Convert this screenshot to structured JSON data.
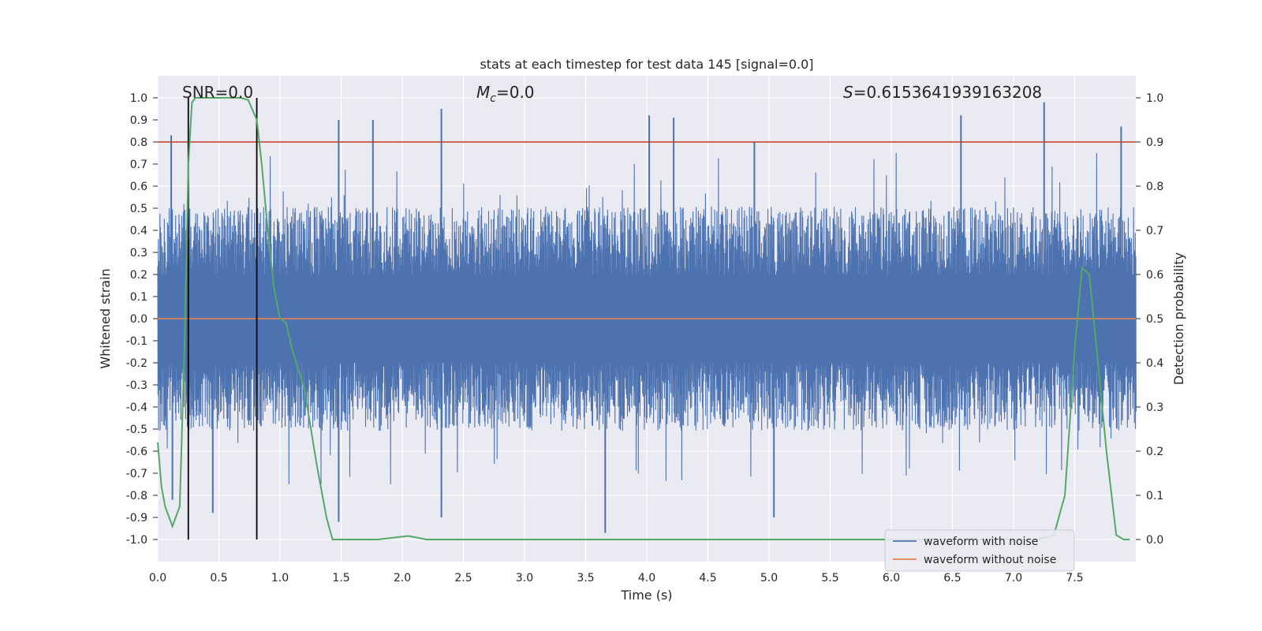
{
  "chart_data": {
    "type": "line",
    "title": "stats at each timestep for test data 145 [signal=0.0]",
    "xlabel": "Time (s)",
    "ylabel": "Whitened strain",
    "y2label": "Detection probability",
    "xlim": [
      0.0,
      8.0
    ],
    "ylim": [
      -1.1,
      1.1
    ],
    "y2lim": [
      -0.05,
      1.05
    ],
    "xticks": [
      0.0,
      0.5,
      1.0,
      1.5,
      2.0,
      2.5,
      3.0,
      3.5,
      4.0,
      4.5,
      5.0,
      5.5,
      6.0,
      6.5,
      7.0,
      7.5
    ],
    "xtick_labels": [
      "0.0",
      "0.5",
      "1.0",
      "1.5",
      "2.0",
      "2.5",
      "3.0",
      "3.5",
      "4.0",
      "4.5",
      "5.0",
      "5.5",
      "6.0",
      "6.5",
      "7.0",
      "7.5"
    ],
    "yticks": [
      1.0,
      0.9,
      0.8,
      0.7,
      0.6,
      0.5,
      0.4,
      0.3,
      0.2,
      0.1,
      0.0,
      -0.1,
      -0.2,
      -0.3,
      -0.4,
      -0.5,
      -0.6,
      -0.7,
      -0.8,
      -0.9,
      -1.0
    ],
    "ytick_labels": [
      "1.0",
      "0.9",
      "0.8",
      "0.7",
      "0.6",
      "0.5",
      "0.4",
      "0.3",
      "0.2",
      "0.1",
      "0.0",
      "-0.1",
      "-0.2",
      "-0.3",
      "-0.4",
      "-0.5",
      "-0.6",
      "-0.7",
      "-0.8",
      "-0.9",
      "-1.0"
    ],
    "y2ticks": [
      1.0,
      0.9,
      0.8,
      0.7,
      0.6,
      0.5,
      0.4,
      0.3,
      0.2,
      0.1,
      0.0
    ],
    "y2tick_labels": [
      "1.0",
      "0.9",
      "0.8",
      "0.7",
      "0.6",
      "0.5",
      "0.4",
      "0.3",
      "0.2",
      "0.1",
      "0.0"
    ],
    "annotations": {
      "snr": {
        "text": "SNR=0.0",
        "x": 0.2,
        "y": 1.0
      },
      "mc": {
        "sym": "M",
        "sub": "c",
        "text": "=0.0",
        "x": 2.6,
        "y": 1.0
      },
      "s": {
        "sym": "S",
        "text": "=0.6153641939163208",
        "x": 5.6,
        "y": 1.0
      }
    },
    "threshold_line": {
      "y2": 0.9,
      "color": "#c0392b"
    },
    "vertical_lines": [
      0.25,
      0.81
    ],
    "noise_envelope": {
      "typical_positive": 0.35,
      "typical_negative": -0.35,
      "peaks": [
        {
          "x": 0.11,
          "y": 0.83
        },
        {
          "x": 1.48,
          "y": 0.9
        },
        {
          "x": 1.76,
          "y": 0.9
        },
        {
          "x": 2.32,
          "y": 0.95
        },
        {
          "x": 4.02,
          "y": 0.92
        },
        {
          "x": 4.22,
          "y": 0.91
        },
        {
          "x": 4.88,
          "y": 0.8
        },
        {
          "x": 6.57,
          "y": 0.92
        },
        {
          "x": 7.25,
          "y": 0.98
        },
        {
          "x": 7.88,
          "y": 0.87
        },
        {
          "x": 3.66,
          "y": -0.97
        },
        {
          "x": 1.48,
          "y": -0.92
        },
        {
          "x": 2.32,
          "y": -0.9
        },
        {
          "x": 5.04,
          "y": -0.9
        },
        {
          "x": 0.45,
          "y": -0.88
        },
        {
          "x": 0.12,
          "y": -0.82
        }
      ]
    },
    "series": [
      {
        "name": "waveform with noise",
        "color": "#4c72b0",
        "axis": "left",
        "values": "noise"
      },
      {
        "name": "waveform without noise",
        "color": "#dd8452",
        "axis": "left",
        "x": [
          0.0,
          8.0
        ],
        "y": [
          0.0,
          0.0
        ]
      },
      {
        "name": "detection probability",
        "color": "#55a868",
        "axis": "right",
        "x": [
          0.0,
          0.03,
          0.06,
          0.12,
          0.18,
          0.22,
          0.25,
          0.28,
          0.31,
          0.4,
          0.5,
          0.6,
          0.68,
          0.74,
          0.81,
          0.85,
          0.9,
          0.95,
          1.0,
          1.05,
          1.1,
          1.2,
          1.3,
          1.38,
          1.43,
          1.6,
          1.8,
          2.05,
          2.2,
          2.5,
          3.0,
          4.0,
          5.0,
          6.0,
          7.0,
          7.2,
          7.33,
          7.42,
          7.5,
          7.56,
          7.62,
          7.68,
          7.76,
          7.84,
          7.9,
          7.95
        ],
        "y": [
          0.22,
          0.12,
          0.075,
          0.03,
          0.075,
          0.45,
          0.85,
          0.99,
          1.0,
          1.0,
          1.0,
          1.0,
          1.0,
          0.995,
          0.95,
          0.85,
          0.7,
          0.57,
          0.5,
          0.49,
          0.43,
          0.34,
          0.17,
          0.05,
          0.0,
          0.0,
          0.0,
          0.008,
          0.0,
          0.0,
          0.0,
          0.0,
          0.0,
          0.0,
          0.0,
          0.0,
          0.01,
          0.1,
          0.43,
          0.615,
          0.6,
          0.43,
          0.2,
          0.01,
          0.0,
          0.0
        ]
      }
    ],
    "legend": {
      "position": "bottom-right",
      "entries": [
        {
          "label": "waveform with noise",
          "color": "#4c72b0"
        },
        {
          "label": "waveform without noise",
          "color": "#dd8452"
        }
      ]
    },
    "grid": true,
    "colors": {
      "background": "#eaeaf2",
      "grid": "#ffffff",
      "text": "#262626"
    }
  }
}
